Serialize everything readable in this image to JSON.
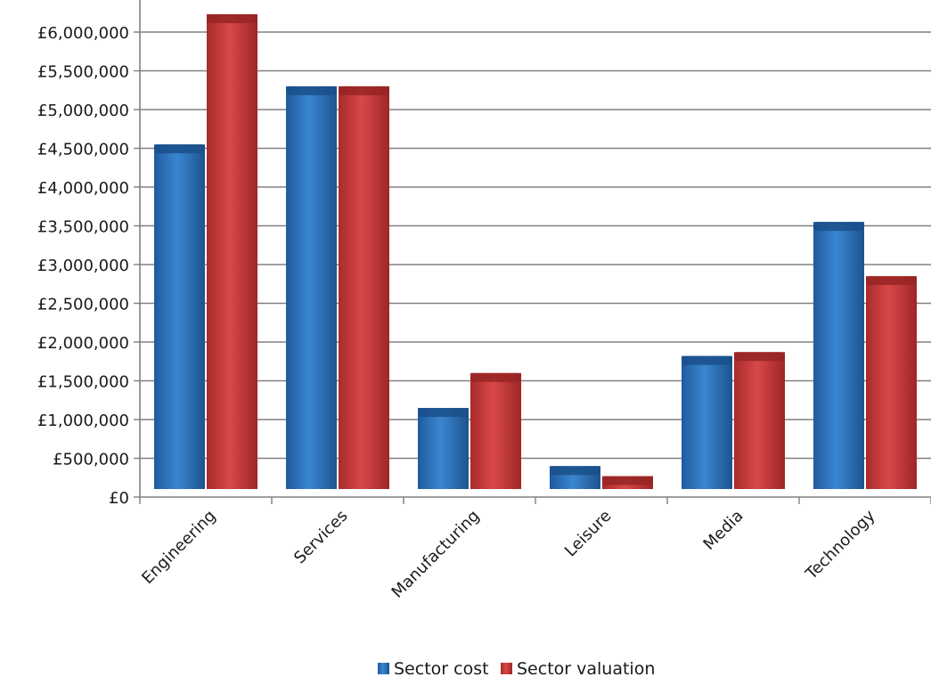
{
  "chart_data": {
    "type": "bar",
    "categories": [
      "Engineering",
      "Services",
      "Manufacturing",
      "Leisure",
      "Media",
      "Technology"
    ],
    "series": [
      {
        "name": "Sector cost",
        "values": [
          4550000,
          5300000,
          1150000,
          400000,
          1820000,
          3550000
        ],
        "color": "#2e6fb5"
      },
      {
        "name": "Sector valuation",
        "values": [
          6230000,
          5300000,
          1600000,
          270000,
          1870000,
          2850000
        ],
        "color": "#c23a3a"
      }
    ],
    "y_ticks": [
      "£0",
      "£500,000",
      "£1,000,000",
      "£1,500,000",
      "£2,000,000",
      "£2,500,000",
      "£3,000,000",
      "£3,500,000",
      "£4,000,000",
      "£4,500,000",
      "£5,000,000",
      "£5,500,000",
      "£6,000,000"
    ],
    "ylim": [
      0,
      6000000
    ],
    "grid": true,
    "legend_position": "bottom"
  }
}
